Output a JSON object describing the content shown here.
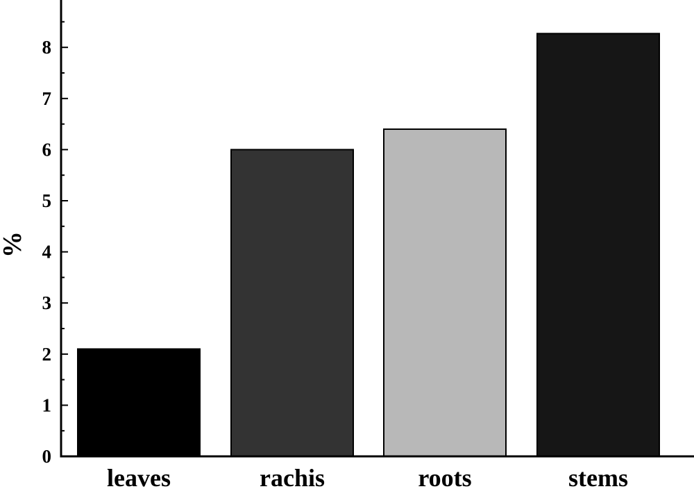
{
  "chart_data": {
    "type": "bar",
    "title": "",
    "xlabel": "",
    "ylabel": "%",
    "categories": [
      "leaves",
      "rachis",
      "roots",
      "stems"
    ],
    "values": [
      2.1,
      6.0,
      6.4,
      8.27
    ],
    "colors": [
      "#000000",
      "#333333",
      "#b8b8b8",
      "#161616"
    ],
    "ylim": [
      0,
      8.7
    ],
    "yticks": [
      0,
      1,
      2,
      3,
      4,
      5,
      6,
      7,
      8
    ],
    "ytick_labels": [
      "0",
      "1",
      "2",
      "3",
      "4",
      "5",
      "6",
      "7",
      "8"
    ],
    "grid": false,
    "legend": "none"
  }
}
